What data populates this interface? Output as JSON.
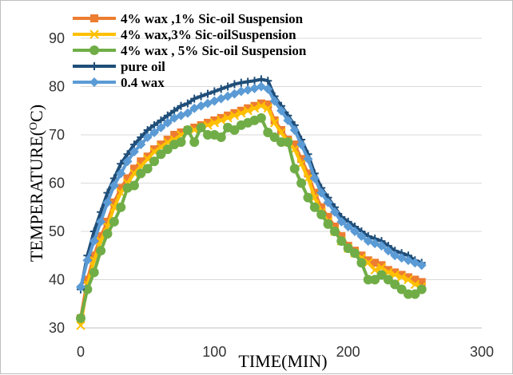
{
  "chart_data": {
    "type": "line",
    "xlabel": "TIME(MIN)",
    "ylabel_parts": [
      "TEMPERATURE(",
      "O",
      "C)"
    ],
    "xlim": [
      0,
      300
    ],
    "ylim": [
      30,
      90
    ],
    "x_ticks": [
      0,
      100,
      200,
      300
    ],
    "y_ticks": [
      30,
      40,
      50,
      60,
      70,
      80,
      90
    ],
    "grid": "horizontal",
    "legend_position": "top-left",
    "series": [
      {
        "name": "4% wax ,1% Sic-oil Suspension",
        "color": "#ED7D31",
        "marker": "square",
        "x": [
          0,
          5,
          10,
          15,
          20,
          25,
          30,
          35,
          40,
          45,
          50,
          55,
          60,
          65,
          70,
          75,
          80,
          85,
          90,
          95,
          100,
          105,
          110,
          115,
          120,
          125,
          130,
          135,
          140,
          145,
          150,
          155,
          160,
          165,
          170,
          175,
          180,
          185,
          190,
          195,
          200,
          205,
          210,
          215,
          220,
          225,
          230,
          235,
          240,
          245,
          250,
          255
        ],
        "y": [
          32,
          40,
          45,
          49,
          52,
          56,
          59,
          61,
          63,
          64.5,
          65.5,
          67,
          68,
          69,
          70,
          70.5,
          71,
          71.5,
          72,
          72.5,
          73,
          73.5,
          74,
          74.5,
          75,
          75.5,
          76,
          76.5,
          76.3,
          73,
          71,
          69,
          68,
          65,
          62,
          58,
          55,
          53,
          51,
          49,
          47,
          46,
          45,
          44,
          43.5,
          43,
          42,
          41.5,
          41,
          40.5,
          40,
          39.5
        ]
      },
      {
        "name": "4% wax,3% Sic-oilSuspension",
        "color": "#FFC000",
        "marker": "x",
        "x": [
          0,
          5,
          10,
          15,
          20,
          25,
          30,
          35,
          40,
          45,
          50,
          55,
          60,
          65,
          70,
          75,
          80,
          85,
          90,
          95,
          100,
          105,
          110,
          115,
          120,
          125,
          130,
          135,
          140,
          145,
          150,
          155,
          160,
          165,
          170,
          175,
          180,
          185,
          190,
          195,
          200,
          205,
          210,
          215,
          220,
          225,
          230,
          235,
          240,
          245,
          250,
          255
        ],
        "y": [
          30.5,
          39,
          44,
          48,
          51,
          55,
          58,
          60,
          62,
          63.5,
          65,
          66.5,
          67.5,
          68.5,
          69,
          70,
          70.5,
          71,
          71.5,
          72,
          72.5,
          73,
          73.5,
          74,
          74.5,
          75,
          75.5,
          76,
          75.5,
          72.5,
          70.5,
          68.5,
          67,
          64,
          61,
          57,
          54,
          52,
          50,
          48,
          46.5,
          45.5,
          44.5,
          43.5,
          42,
          42.5,
          41.5,
          41,
          40.5,
          40,
          39,
          38.5
        ]
      },
      {
        "name": "4% wax , 5% Sic-oil Suspension",
        "color": "#70AD47",
        "marker": "circle",
        "x": [
          0,
          5,
          10,
          15,
          20,
          25,
          30,
          35,
          40,
          45,
          50,
          55,
          60,
          65,
          70,
          75,
          80,
          85,
          90,
          95,
          100,
          105,
          110,
          115,
          120,
          125,
          130,
          135,
          140,
          145,
          150,
          155,
          160,
          165,
          170,
          175,
          180,
          185,
          190,
          195,
          200,
          205,
          210,
          215,
          220,
          225,
          230,
          235,
          240,
          245,
          250,
          255
        ],
        "y": [
          32,
          38,
          41.5,
          46,
          49.5,
          52,
          55,
          59,
          59.5,
          62,
          63,
          64.5,
          66,
          67,
          68,
          68.5,
          71,
          68.5,
          71.5,
          70,
          70,
          69.5,
          71.5,
          71,
          72,
          72.5,
          73,
          73.5,
          70.5,
          69.5,
          68.5,
          68.5,
          63,
          60,
          57,
          55,
          53.5,
          51.5,
          50,
          48,
          46.5,
          45.5,
          43.5,
          40,
          40,
          41,
          40,
          39,
          38,
          37,
          37,
          38
        ]
      },
      {
        "name": "pure oil",
        "color": "#1F4E79",
        "marker": "plus",
        "x": [
          0,
          5,
          10,
          15,
          20,
          25,
          30,
          35,
          40,
          45,
          50,
          55,
          60,
          65,
          70,
          75,
          80,
          85,
          90,
          95,
          100,
          105,
          110,
          115,
          120,
          125,
          130,
          135,
          140,
          145,
          150,
          155,
          160,
          165,
          170,
          175,
          180,
          185,
          190,
          195,
          200,
          205,
          210,
          215,
          220,
          225,
          230,
          235,
          240,
          245,
          250,
          255
        ],
        "y": [
          38,
          45,
          50,
          54,
          58,
          61,
          64,
          66,
          68,
          69.5,
          71,
          72,
          73,
          74,
          75,
          76,
          76.5,
          77.5,
          78,
          78.5,
          79,
          79.5,
          80,
          80.5,
          80.8,
          81,
          81.2,
          81.5,
          81.2,
          78,
          76,
          74,
          72,
          69,
          66,
          62,
          59,
          57,
          55,
          53,
          52,
          51,
          50,
          49,
          48.5,
          48,
          47,
          46,
          45.5,
          45,
          44,
          43.5
        ]
      },
      {
        "name": "0.4 wax",
        "color": "#5B9BD5",
        "marker": "diamond",
        "x": [
          0,
          5,
          10,
          15,
          20,
          25,
          30,
          35,
          40,
          45,
          50,
          55,
          60,
          65,
          70,
          75,
          80,
          85,
          90,
          95,
          100,
          105,
          110,
          115,
          120,
          125,
          130,
          135,
          140,
          145,
          150,
          155,
          160,
          165,
          170,
          175,
          180,
          185,
          190,
          195,
          200,
          205,
          210,
          215,
          220,
          225,
          230,
          235,
          240,
          245,
          250,
          255
        ],
        "y": [
          38.5,
          44,
          48,
          52,
          56,
          59.5,
          62,
          64.5,
          66.5,
          68,
          69.5,
          70.5,
          71.5,
          72.5,
          73.5,
          74,
          74.5,
          75.5,
          76,
          76.5,
          77,
          77.5,
          78,
          78.5,
          79,
          79.3,
          79.6,
          80,
          79.5,
          77,
          75,
          73,
          71,
          68,
          65,
          61,
          58,
          56,
          54,
          52,
          51,
          50,
          49,
          48,
          47.5,
          47,
          46,
          45,
          44.5,
          44,
          43.5,
          43
        ]
      }
    ]
  }
}
